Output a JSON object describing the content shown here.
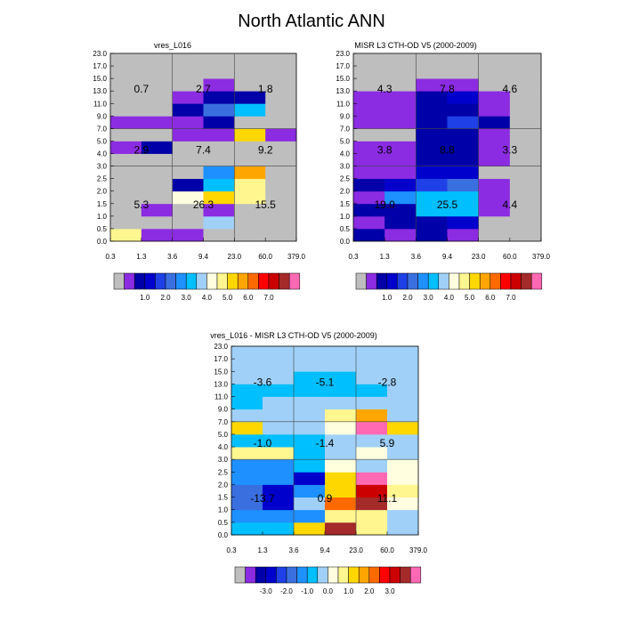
{
  "title": "North Atlantic ANN",
  "palette": [
    "#bebebe",
    "#8b2be2",
    "#0000a8",
    "#0000cd",
    "#1e40e6",
    "#3a6fe0",
    "#1e90ff",
    "#00bfff",
    "#a0d0f8",
    "#ffffe0",
    "#fff68f",
    "#ffd700",
    "#ffa500",
    "#ff6a00",
    "#ff0000",
    "#cc0000",
    "#a52a2a",
    "#ff69b4"
  ],
  "chart_data": [
    {
      "type": "heatmap",
      "id": "p1",
      "title": "vres_L016",
      "x_ticks": [
        "0.3",
        "1.3",
        "3.6",
        "9.4",
        "23.0",
        "60.0",
        "379.0"
      ],
      "y_ticks": [
        "0.0",
        "0.5",
        "1.0",
        "1.5",
        "2.0",
        "2.5",
        "3.0",
        "4.0",
        "5.0",
        "7.0",
        "9.0",
        "11.0",
        "13.0",
        "15.0",
        "17.0",
        "23.0"
      ],
      "cells": [
        [
          10,
          1,
          1,
          0,
          0,
          0
        ],
        [
          0,
          0,
          0,
          8,
          0,
          0
        ],
        [
          0,
          1,
          0,
          1,
          0,
          0
        ],
        [
          0,
          0,
          9,
          11,
          10,
          0
        ],
        [
          0,
          0,
          2,
          7,
          10,
          0
        ],
        [
          0,
          0,
          0,
          6,
          12,
          0
        ],
        [
          0,
          0,
          0,
          0,
          0,
          0
        ],
        [
          1,
          2,
          0,
          0,
          0,
          0
        ],
        [
          0,
          0,
          1,
          1,
          11,
          1
        ],
        [
          1,
          1,
          1,
          2,
          0,
          0
        ],
        [
          0,
          0,
          2,
          5,
          7,
          0
        ],
        [
          0,
          0,
          1,
          2,
          2,
          0
        ],
        [
          0,
          0,
          0,
          1,
          0,
          0
        ],
        [
          0,
          0,
          0,
          0,
          0,
          0
        ],
        [
          0,
          0,
          0,
          0,
          0,
          0
        ]
      ],
      "labels": [
        "0.7",
        "2.7",
        "1.8",
        "2.9",
        "7.4",
        "9.2",
        "5.3",
        "26.3",
        "15.5"
      ],
      "colorbar": [
        "1.0",
        "2.0",
        "3.0",
        "4.0",
        "5.0",
        "6.0",
        "7.0"
      ]
    },
    {
      "type": "heatmap",
      "id": "p2",
      "title": "MISR L3 CTH-OD V5 (2000-2009)",
      "x_ticks": [
        "0.3",
        "1.3",
        "3.6",
        "9.4",
        "23.0",
        "60.0",
        "379.0"
      ],
      "y_ticks": [
        "0.0",
        "0.5",
        "1.0",
        "1.5",
        "2.0",
        "2.5",
        "3.0",
        "4.0",
        "5.0",
        "7.0",
        "9.0",
        "11.0",
        "13.0",
        "15.0",
        "17.0",
        "23.0"
      ],
      "cells": [
        [
          2,
          1,
          2,
          1,
          0,
          0
        ],
        [
          1,
          2,
          2,
          3,
          0,
          0
        ],
        [
          2,
          2,
          7,
          7,
          1,
          0
        ],
        [
          1,
          6,
          7,
          7,
          1,
          0
        ],
        [
          2,
          3,
          4,
          5,
          1,
          0
        ],
        [
          1,
          1,
          3,
          3,
          0,
          0
        ],
        [
          1,
          1,
          2,
          2,
          1,
          0
        ],
        [
          1,
          1,
          2,
          2,
          1,
          0
        ],
        [
          0,
          0,
          2,
          2,
          1,
          0
        ],
        [
          1,
          1,
          2,
          4,
          2,
          0
        ],
        [
          1,
          1,
          2,
          2,
          1,
          0
        ],
        [
          1,
          1,
          2,
          3,
          1,
          0
        ],
        [
          0,
          0,
          1,
          1,
          0,
          0
        ],
        [
          0,
          0,
          0,
          0,
          0,
          0
        ],
        [
          0,
          0,
          0,
          0,
          0,
          0
        ]
      ],
      "labels": [
        "4.3",
        "7.8",
        "4.6",
        "3.8",
        "8.8",
        "3.3",
        "19.0",
        "25.5",
        "4.4"
      ],
      "colorbar": [
        "1.0",
        "2.0",
        "3.0",
        "4.0",
        "5.0",
        "6.0",
        "7.0"
      ]
    },
    {
      "type": "heatmap",
      "id": "p3",
      "title": "vres_L016 - MISR L3 CTH-OD V5 (2000-2009)",
      "x_ticks": [
        "0.3",
        "1.3",
        "3.6",
        "9.4",
        "23.0",
        "60.0",
        "379.0"
      ],
      "y_ticks": [
        "0.0",
        "0.5",
        "1.0",
        "1.5",
        "2.0",
        "2.5",
        "3.0",
        "4.0",
        "5.0",
        "7.0",
        "9.0",
        "11.0",
        "13.0",
        "15.0",
        "17.0",
        "23.0"
      ],
      "cells": [
        [
          7,
          7,
          11,
          16,
          10,
          8
        ],
        [
          6,
          6,
          6,
          10,
          10,
          8
        ],
        [
          5,
          3,
          8,
          13,
          16,
          9
        ],
        [
          5,
          3,
          6,
          11,
          15,
          10
        ],
        [
          6,
          6,
          3,
          11,
          17,
          9
        ],
        [
          6,
          6,
          7,
          9,
          8,
          9
        ],
        [
          10,
          10,
          7,
          8,
          9,
          8
        ],
        [
          7,
          7,
          7,
          8,
          8,
          8
        ],
        [
          11,
          8,
          8,
          9,
          17,
          11
        ],
        [
          8,
          8,
          8,
          10,
          12,
          8
        ],
        [
          7,
          8,
          8,
          8,
          8,
          8
        ],
        [
          7,
          7,
          7,
          7,
          7,
          8
        ],
        [
          8,
          8,
          7,
          7,
          8,
          8
        ],
        [
          8,
          8,
          8,
          8,
          8,
          8
        ],
        [
          8,
          8,
          8,
          8,
          8,
          8
        ]
      ],
      "labels": [
        "-3.6",
        "-5.1",
        "-2.8",
        "-1.0",
        "-1.4",
        "5.9",
        "-13.7",
        "0.9",
        "11.1"
      ],
      "colorbar": [
        "-3.0",
        "-2.0",
        "-1.0",
        "0.0",
        "1.0",
        "2.0",
        "3.0"
      ]
    }
  ]
}
